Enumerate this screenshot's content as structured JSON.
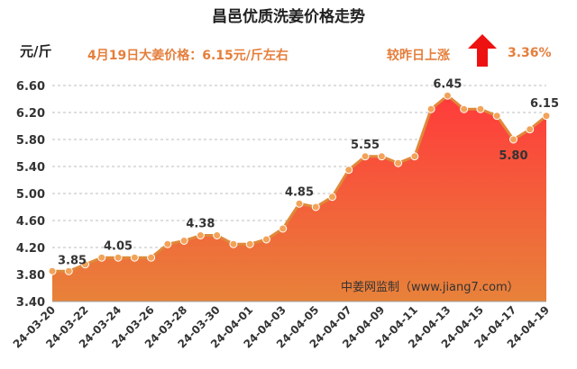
{
  "chart_data": {
    "type": "area",
    "title": "昌邑优质洗姜价格走势",
    "ylabel": "元/斤",
    "ylim": [
      3.4,
      6.6
    ],
    "yticks": [
      "6.60",
      "6.20",
      "5.80",
      "5.40",
      "5.00",
      "4.60",
      "4.20",
      "3.80",
      "3.40"
    ],
    "x": [
      "24-03-20",
      "24-03-21",
      "24-03-22",
      "24-03-23",
      "24-03-24",
      "24-03-25",
      "24-03-26",
      "24-03-27",
      "24-03-28",
      "24-03-29",
      "24-03-30",
      "24-03-31",
      "24-04-01",
      "24-04-02",
      "24-04-03",
      "24-04-04",
      "24-04-05",
      "24-04-06",
      "24-04-07",
      "24-04-08",
      "24-04-09",
      "24-04-10",
      "24-04-11",
      "24-04-12",
      "24-04-13",
      "24-04-14",
      "24-04-15",
      "24-04-16",
      "24-04-17",
      "24-04-18",
      "24-04-19"
    ],
    "xtick_labels": [
      "24-03-20",
      "24-03-22",
      "24-03-24",
      "24-03-26",
      "24-03-28",
      "24-03-30",
      "24-04-01",
      "24-04-03",
      "24-04-05",
      "24-04-07",
      "24-04-09",
      "24-04-11",
      "24-04-13",
      "24-04-15",
      "24-04-17",
      "24-04-19"
    ],
    "values": [
      3.85,
      3.85,
      3.95,
      4.05,
      4.05,
      4.05,
      4.05,
      4.25,
      4.3,
      4.38,
      4.38,
      4.25,
      4.25,
      4.32,
      4.48,
      4.85,
      4.8,
      4.95,
      5.35,
      5.55,
      5.55,
      5.45,
      5.55,
      6.25,
      6.45,
      6.25,
      6.25,
      6.15,
      5.8,
      5.95,
      6.15
    ],
    "data_labels": [
      {
        "index": 0,
        "text": "3.85"
      },
      {
        "index": 4,
        "text": "4.05"
      },
      {
        "index": 9,
        "text": "4.38"
      },
      {
        "index": 15,
        "text": "4.85"
      },
      {
        "index": 19,
        "text": "5.55"
      },
      {
        "index": 24,
        "text": "6.45"
      },
      {
        "index": 28,
        "text": "5.80"
      },
      {
        "index": 30,
        "text": "6.15"
      }
    ],
    "grid": "horizontal dashed",
    "colors": {
      "line": "#e0893a",
      "fill_top": "#ff3b3b",
      "fill_bottom": "#e8823a",
      "marker": "#f2a35a"
    }
  },
  "header": {
    "price_note": "4月19日大姜价格：6.15元/斤左右",
    "change_label": "较昨日上涨",
    "change_value": "3.36%",
    "arrow_color": "#ee1111",
    "arrow_icon": "up-arrow-icon"
  },
  "watermark": "中姜网监制（www.jiang7.com）"
}
